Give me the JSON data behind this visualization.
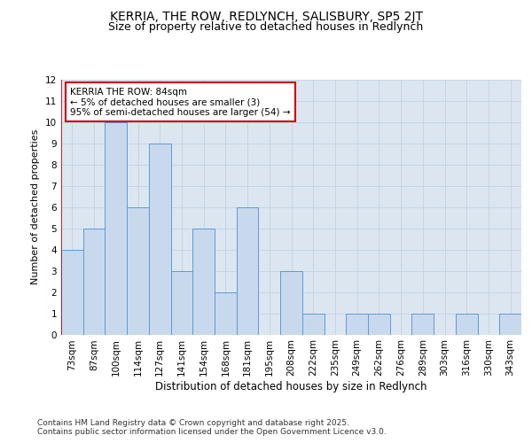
{
  "title": "KERRIA, THE ROW, REDLYNCH, SALISBURY, SP5 2JT",
  "subtitle": "Size of property relative to detached houses in Redlynch",
  "xlabel": "Distribution of detached houses by size in Redlynch",
  "ylabel": "Number of detached properties",
  "categories": [
    "73sqm",
    "87sqm",
    "100sqm",
    "114sqm",
    "127sqm",
    "141sqm",
    "154sqm",
    "168sqm",
    "181sqm",
    "195sqm",
    "208sqm",
    "222sqm",
    "235sqm",
    "249sqm",
    "262sqm",
    "276sqm",
    "289sqm",
    "303sqm",
    "316sqm",
    "330sqm",
    "343sqm"
  ],
  "values": [
    4,
    5,
    10,
    6,
    9,
    3,
    5,
    2,
    6,
    0,
    3,
    1,
    0,
    1,
    1,
    0,
    1,
    0,
    1,
    0,
    1
  ],
  "bar_color": "#c9d9ed",
  "bar_edge_color": "#5b9bd5",
  "annotation_line1": "KERRIA THE ROW: 84sqm",
  "annotation_line2": "← 5% of detached houses are smaller (3)",
  "annotation_line3": "95% of semi-detached houses are larger (54) →",
  "annotation_box_color": "#ffffff",
  "annotation_box_edge": "#cc0000",
  "ref_line_color": "#cc0000",
  "ref_line_xindex": 0,
  "ylim": [
    0,
    12
  ],
  "yticks": [
    0,
    1,
    2,
    3,
    4,
    5,
    6,
    7,
    8,
    9,
    10,
    11,
    12
  ],
  "grid_color": "#c8d4e3",
  "bg_color": "#dce6f1",
  "footer": "Contains HM Land Registry data © Crown copyright and database right 2025.\nContains public sector information licensed under the Open Government Licence v3.0.",
  "title_fontsize": 10,
  "subtitle_fontsize": 9,
  "xlabel_fontsize": 8.5,
  "ylabel_fontsize": 8,
  "tick_fontsize": 7.5,
  "annotation_fontsize": 7.5,
  "footer_fontsize": 6.5
}
